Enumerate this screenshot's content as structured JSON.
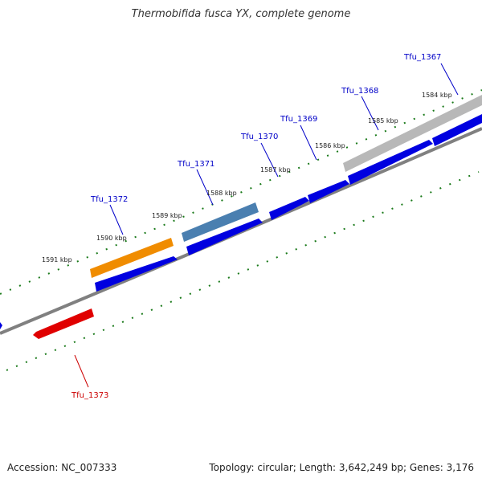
{
  "title": "Thermobifida fusca YX, complete genome",
  "footer": {
    "accession": "Accession: NC_007333",
    "summary": "Topology: circular; Length: 3,642,249 bp; Genes: 3,176"
  },
  "colors": {
    "backbone": "#808080",
    "tick_marks": "#1a7a1a",
    "forward_gene": "#0000e0",
    "label_blue": "#0000c8",
    "label_red": "#cc0000",
    "highlight_orange": "#f08c00",
    "highlight_steelblue": "#4a7fb0",
    "highlight_grey": "#b8b8b8",
    "highlight_red": "#e00000"
  },
  "tick_labels": [
    "1584 kbp",
    "1585 kbp",
    "1586 kbp",
    "1587 kbp",
    "1588 kbp",
    "1589 kbp",
    "1590 kbp",
    "1591 kbp"
  ],
  "gene_labels": [
    {
      "name": "Tfu_1367",
      "color": "blue"
    },
    {
      "name": "Tfu_1368",
      "color": "blue"
    },
    {
      "name": "Tfu_1369",
      "color": "blue"
    },
    {
      "name": "Tfu_1370",
      "color": "blue"
    },
    {
      "name": "Tfu_1371",
      "color": "blue"
    },
    {
      "name": "Tfu_1372",
      "color": "blue"
    },
    {
      "name": "Tfu_1373",
      "color": "red"
    }
  ]
}
